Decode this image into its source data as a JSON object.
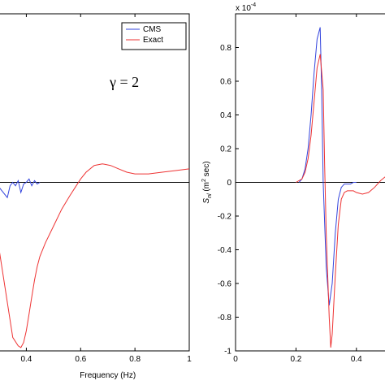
{
  "chart_data": [
    {
      "type": "line",
      "xlabel": "Frequency (Hz)",
      "ylabel": "",
      "xlim": [
        0.3,
        1.0
      ],
      "ylim": [
        -1.0,
        1.0
      ],
      "x_ticks": [
        "0.4",
        "0.6",
        "0.8",
        "1"
      ],
      "x_tick_values": [
        0.4,
        0.6,
        0.8,
        1.0
      ],
      "annotation": "γ = 2",
      "legend": {
        "placement": "top-right",
        "entries": [
          "CMS",
          "Exact"
        ]
      },
      "colors": {
        "CMS": "#3344dd",
        "Exact": "#ee3333",
        "zero_line": "#000000"
      },
      "series": [
        {
          "name": "CMS",
          "x": [
            0.3,
            0.33,
            0.34,
            0.35,
            0.36,
            0.37,
            0.38,
            0.39,
            0.4,
            0.41,
            0.42,
            0.43,
            0.44,
            0.45
          ],
          "y": [
            -0.03,
            -0.09,
            -0.02,
            0.0,
            -0.02,
            0.01,
            -0.06,
            -0.01,
            0.0,
            0.02,
            -0.02,
            0.01,
            -0.01,
            0.0
          ]
        },
        {
          "name": "Exact",
          "x": [
            0.3,
            0.35,
            0.37,
            0.38,
            0.39,
            0.4,
            0.41,
            0.42,
            0.43,
            0.44,
            0.45,
            0.47,
            0.5,
            0.53,
            0.56,
            0.58,
            0.6,
            0.62,
            0.65,
            0.68,
            0.71,
            0.74,
            0.77,
            0.8,
            0.85,
            0.9,
            0.95,
            1.0
          ],
          "y": [
            -0.4,
            -0.92,
            -0.97,
            -0.98,
            -0.95,
            -0.88,
            -0.78,
            -0.68,
            -0.58,
            -0.5,
            -0.44,
            -0.36,
            -0.26,
            -0.16,
            -0.08,
            -0.03,
            0.02,
            0.06,
            0.1,
            0.11,
            0.1,
            0.08,
            0.06,
            0.05,
            0.05,
            0.06,
            0.07,
            0.08
          ]
        }
      ]
    },
    {
      "type": "line",
      "xlabel": "",
      "ylabel_main": "S",
      "ylabel_sub": "nl",
      "ylabel_rest": " (m",
      "ylabel_sup": "2",
      "ylabel_end": " sec)",
      "y_multiplier_base": "x 10",
      "y_multiplier_exp": "-4",
      "xlim": [
        0,
        0.5
      ],
      "ylim": [
        -1.0,
        1.0
      ],
      "x_ticks": [
        "0",
        "0.2",
        "0.4"
      ],
      "x_tick_values": [
        0,
        0.2,
        0.4
      ],
      "y_ticks": [
        "-1",
        "-0.8",
        "-0.6",
        "-0.4",
        "-0.2",
        "0",
        "0.2",
        "0.4",
        "0.6",
        "0.8"
      ],
      "y_tick_values": [
        -1,
        -0.8,
        -0.6,
        -0.4,
        -0.2,
        0,
        0.2,
        0.4,
        0.6,
        0.8
      ],
      "colors": {
        "CMS": "#3344dd",
        "Exact": "#ee3333",
        "zero_line": "#000000"
      },
      "series": [
        {
          "name": "CMS",
          "x": [
            0.21,
            0.22,
            0.23,
            0.24,
            0.25,
            0.26,
            0.27,
            0.28,
            0.285,
            0.29,
            0.3,
            0.31,
            0.32,
            0.33,
            0.34,
            0.35,
            0.36,
            0.37,
            0.38,
            0.39,
            0.4
          ],
          "y": [
            0.0,
            0.02,
            0.08,
            0.2,
            0.4,
            0.65,
            0.85,
            0.92,
            0.55,
            0.0,
            -0.5,
            -0.73,
            -0.6,
            -0.3,
            -0.1,
            -0.03,
            -0.01,
            -0.01,
            -0.01,
            0.0,
            0.0
          ]
        },
        {
          "name": "Exact",
          "x": [
            0.2,
            0.22,
            0.23,
            0.24,
            0.25,
            0.26,
            0.27,
            0.28,
            0.29,
            0.295,
            0.3,
            0.31,
            0.315,
            0.32,
            0.33,
            0.34,
            0.35,
            0.36,
            0.37,
            0.38,
            0.39,
            0.4,
            0.42,
            0.44,
            0.46,
            0.48,
            0.5
          ],
          "y": [
            0.0,
            0.02,
            0.06,
            0.14,
            0.28,
            0.48,
            0.68,
            0.76,
            0.55,
            0.1,
            -0.3,
            -0.8,
            -0.98,
            -0.9,
            -0.55,
            -0.25,
            -0.1,
            -0.06,
            -0.05,
            -0.05,
            -0.05,
            -0.06,
            -0.07,
            -0.06,
            -0.03,
            0.01,
            0.04
          ]
        }
      ]
    }
  ]
}
